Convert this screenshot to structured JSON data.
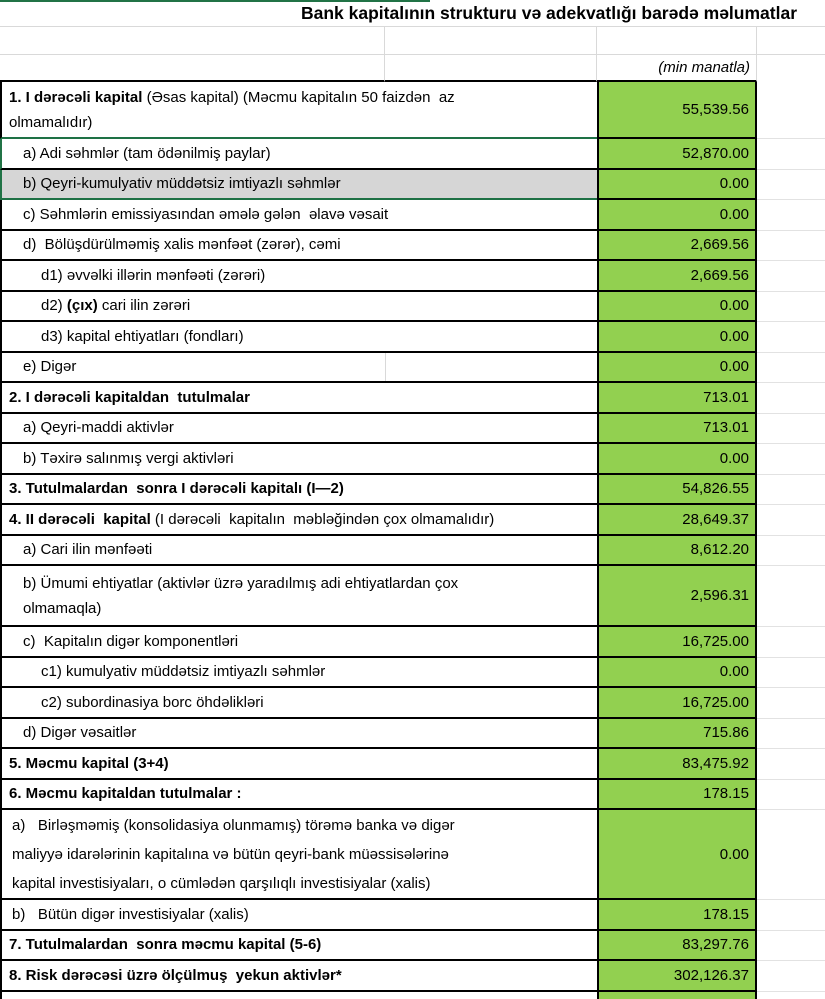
{
  "title": "Bank kapitalının strukturu və adekvatlığı barədə məlumatlar",
  "unit_note": "(min manatla)",
  "colors": {
    "value_fill": "#92D050",
    "highlight_fill": "#D6D6D6",
    "accent_green": "#217346",
    "border_black": "#000000",
    "gridline_gray": "#D9D9D9"
  },
  "highlighted_row_label": "b) Qeyri-kumulyativ müddətsiz imtiyazlı səhmlər",
  "table": {
    "rows": [
      {
        "runs": [
          {
            "text": "1. I dərəcəli kapital ",
            "bold": true
          },
          {
            "text": "(Əsas kapital) (Məcmu kapitalın 50 faizdən  az\nolmamalıdır)",
            "bold": false
          }
        ],
        "value": "55,539.56"
      },
      {
        "runs": [
          {
            "text": "a) Adi səhmlər (tam ödənilmiş paylar)",
            "bold": false
          }
        ],
        "value": "52,870.00"
      },
      {
        "runs": [
          {
            "text": "b) Qeyri-kumulyativ müddətsiz imtiyazlı səhmlər",
            "bold": false
          }
        ],
        "value": "0.00"
      },
      {
        "runs": [
          {
            "text": "c) Səhmlərin emissiyasından əmələ gələn  əlavə vəsait",
            "bold": false
          }
        ],
        "value": "0.00"
      },
      {
        "runs": [
          {
            "text": "d)  Bölüşdürülməmiş xalis mənfəət (zərər), cəmi",
            "bold": false
          }
        ],
        "value": "2,669.56"
      },
      {
        "runs": [
          {
            "text": "d1) əvvəlki illərin mənfəəti (zərəri)",
            "bold": false
          }
        ],
        "value": "2,669.56"
      },
      {
        "runs": [
          {
            "text": "d2) ",
            "bold": false
          },
          {
            "text": "(çıx)",
            "bold": true
          },
          {
            "text": " cari ilin zərəri",
            "bold": false
          }
        ],
        "value": "0.00"
      },
      {
        "runs": [
          {
            "text": "d3) kapital ehtiyatları (fondları)",
            "bold": false
          }
        ],
        "value": "0.00"
      },
      {
        "runs": [
          {
            "text": "e) Digər",
            "bold": false
          }
        ],
        "value": "0.00"
      },
      {
        "runs": [
          {
            "text": "2. I dərəcəli kapitaldan  tutulmalar",
            "bold": true
          }
        ],
        "value": "713.01"
      },
      {
        "runs": [
          {
            "text": "a) Qeyri-maddi aktivlər",
            "bold": false
          }
        ],
        "value": "713.01"
      },
      {
        "runs": [
          {
            "text": "b) Təxirə salınmış vergi aktivləri",
            "bold": false
          }
        ],
        "value": "0.00"
      },
      {
        "runs": [
          {
            "text": "3. Tutulmalardan  sonra I dərəcəli kapitalı (I—2)",
            "bold": true
          }
        ],
        "value": "54,826.55"
      },
      {
        "runs": [
          {
            "text": "4. II dərəcəli  kapital ",
            "bold": true
          },
          {
            "text": "(I dərəcəli  kapitalın  məbləğindən çox olmamalıdır)",
            "bold": false
          }
        ],
        "value": "28,649.37"
      },
      {
        "runs": [
          {
            "text": "a) Cari ilin mənfəəti",
            "bold": false
          }
        ],
        "value": "8,612.20"
      },
      {
        "runs": [
          {
            "text": "b) Ümumi ehtiyatlar (aktivlər üzrə yaradılmış adi ehtiyatlardan çox\nolmamaqla)",
            "bold": false
          }
        ],
        "value": "2,596.31"
      },
      {
        "runs": [
          {
            "text": "c)  Kapitalın digər komponentləri",
            "bold": false
          }
        ],
        "value": "16,725.00"
      },
      {
        "runs": [
          {
            "text": "c1) kumulyativ müddətsiz imtiyazlı səhmlər",
            "bold": false
          }
        ],
        "value": "0.00"
      },
      {
        "runs": [
          {
            "text": "c2) subordinasiya borc öhdəlikləri",
            "bold": false
          }
        ],
        "value": "16,725.00"
      },
      {
        "runs": [
          {
            "text": "d) Digər vəsaitlər",
            "bold": false
          }
        ],
        "value": "715.86"
      },
      {
        "runs": [
          {
            "text": "5. Məcmu kapital (3+4)",
            "bold": true
          }
        ],
        "value": "83,475.92"
      },
      {
        "runs": [
          {
            "text": "6. Məcmu kapitaldan tutulmalar :",
            "bold": true
          }
        ],
        "value": "178.15"
      },
      {
        "runs": [
          {
            "text": "a)   Birləşməmiş (konsolidasiya olunmamış) törəmə banka və digər\nmaliyyə idarələrinin kapitalına və bütün qeyri-bank müəssisələrinə\nkapital investisiyaları, o cümlədən qarşılıqlı investisiyalar (xalis)",
            "bold": false
          }
        ],
        "value": "0.00"
      },
      {
        "runs": [
          {
            "text": "b)   Bütün digər investisiyalar (xalis)",
            "bold": false
          }
        ],
        "value": "178.15"
      },
      {
        "runs": [
          {
            "text": "7. Tutulmalardan  sonra məcmu kapital (5-6)",
            "bold": true
          }
        ],
        "value": "83,297.76"
      },
      {
        "runs": [
          {
            "text": "8. Risk dərəcəsi üzrə ölçülmuş  yekun aktivlər*",
            "bold": true
          }
        ],
        "value": "302,126.37"
      }
    ]
  }
}
